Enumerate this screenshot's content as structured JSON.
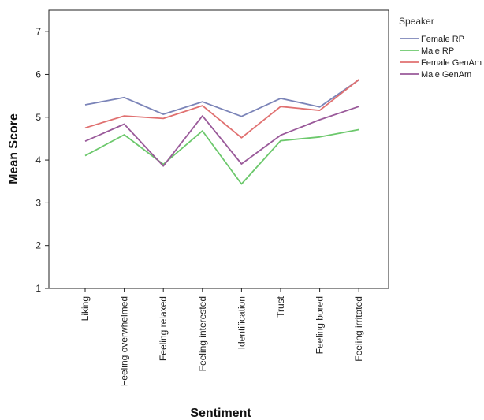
{
  "chart_data": {
    "type": "line",
    "xlabel": "Sentiment",
    "ylabel": "Mean Score",
    "categories": [
      "Liking",
      "Feeling overwhelmed",
      "Feeling relaxed",
      "Feeling interested",
      "Identification",
      "Trust",
      "Feeling bored",
      "Feeling irritated"
    ],
    "ylim": [
      1,
      7.5
    ],
    "yticks": [
      1,
      2,
      3,
      4,
      5,
      6,
      7
    ],
    "grid": false,
    "legend": {
      "title": "Speaker",
      "placement": "top-right outside"
    },
    "series": [
      {
        "name": "Female RP",
        "color": "#7b84b8",
        "values": [
          5.29,
          5.46,
          5.07,
          5.36,
          5.02,
          5.44,
          5.24,
          5.87
        ]
      },
      {
        "name": "Male RP",
        "color": "#6cc86c",
        "values": [
          4.1,
          4.59,
          3.9,
          4.68,
          3.44,
          4.45,
          4.54,
          4.71
        ]
      },
      {
        "name": "Female GenAm",
        "color": "#e07070",
        "values": [
          4.75,
          5.03,
          4.97,
          5.27,
          4.52,
          5.25,
          5.16,
          5.88
        ]
      },
      {
        "name": "Male GenAm",
        "color": "#9a5a9a",
        "values": [
          4.44,
          4.84,
          3.86,
          5.03,
          3.91,
          4.58,
          4.94,
          5.25
        ]
      }
    ]
  }
}
